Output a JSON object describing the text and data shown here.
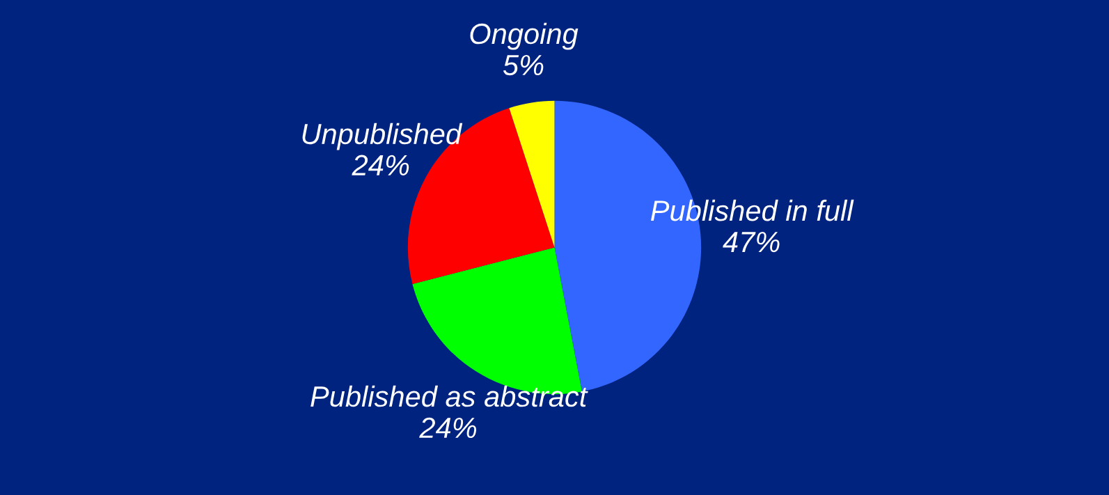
{
  "chart_data": {
    "type": "pie",
    "categories": [
      "Published in full",
      "Published as abstract",
      "Unpublished",
      "Ongoing"
    ],
    "values": [
      47,
      24,
      24,
      5
    ],
    "value_labels": [
      "47%",
      "24%",
      "24%",
      "5%"
    ],
    "colors": [
      "#3366ff",
      "#00ff00",
      "#ff0000",
      "#ffff00"
    ]
  }
}
